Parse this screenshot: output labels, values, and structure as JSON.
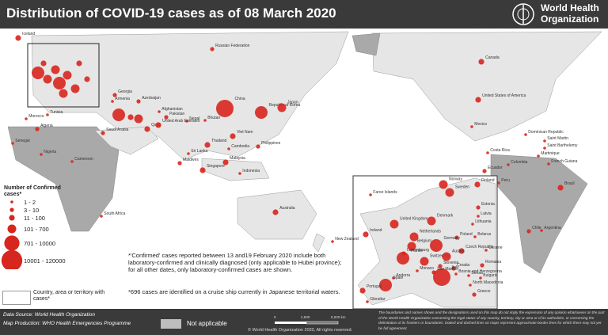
{
  "header": {
    "title": "Distribution of COVID-19 cases as of 08 March 2020",
    "organization": [
      "World Health",
      "Organization"
    ]
  },
  "legend": {
    "title": "Number of Confirmed cases*",
    "classes": [
      "1 - 2",
      "3 - 10",
      "11 - 100",
      "101 - 700",
      "701 - 10000",
      "10001 - 120000"
    ],
    "territory": "Country, area or territory with cases*",
    "not_applicable": "Not applicable"
  },
  "notes": [
    "*'Confirmed' cases reported between 13 and19 February 2020 include both laboratory-confirmed and clinically diagnosed (only applicable to Hubei province); for all other dates, only laboratory-confirmed cases are shown.",
    "*696 cases are identified on a cruise ship currently in Japanese territorial waters."
  ],
  "footer": {
    "data_source": "Data Source: World Health Organization",
    "map_production": "Map Production: WHO Health Emergencies Programme",
    "scale": [
      "0",
      "2,500",
      "5,000 km"
    ],
    "copyright": "© World Health Organization 2020, All rights reserved.",
    "disclaimer": "The boundaries and names shown and the designations used on this map do not imply the expression of any opinion whatsoever on the part of the World Health Organization concerning the legal status of any country, territory, city or area or of its authorities, or concerning the delimitation of its frontiers or boundaries. Dotted and dashed lines on maps represent approximate border lines for which there may not yet be full agreement."
  },
  "map_labels": [
    "Russian Federation",
    "Canada",
    "United States of America",
    "Mexico",
    "China",
    "Republic of Korea",
    "Japan",
    "Nepal",
    "Bhutan",
    "Thailand",
    "Viet Nam",
    "Cambodia",
    "Philippines",
    "Malaysia",
    "Singapore",
    "Indonesia",
    "Sri Lanka",
    "Maldives",
    "Australia",
    "New Zealand",
    "Afghanistan",
    "Pakistan",
    "Qatar",
    "United Arab Emirates",
    "Saudi Arabia",
    "Morocco",
    "Tunisia",
    "Algeria",
    "Nigeria",
    "Cameroon",
    "Senegal",
    "South Africa",
    "Iceland",
    "Georgia",
    "Armenia",
    "Azerbaijan",
    "Dominican Republic",
    "Saint Martin",
    "Saint Barthelemy",
    "Martinique",
    "Costa Rica",
    "Colombia",
    "Ecuador",
    "French Guiana",
    "Peru",
    "Brazil",
    "Chile",
    "Argentina"
  ],
  "europe_labels": [
    "Faroe Islands",
    "Norway",
    "Sweden",
    "Finland",
    "Estonia",
    "Latvia",
    "Lithuania",
    "Denmark",
    "Belarus",
    "United Kingdom",
    "Ireland",
    "Netherlands",
    "Poland",
    "Belgium",
    "Germany",
    "Czech Republic",
    "Ukraine",
    "France",
    "Switzerland",
    "Austria",
    "Slovenia",
    "Croatia",
    "Romania",
    "Bosnia and Herzegovina",
    "Serbia",
    "Bulgaria",
    "Italy",
    "Andorra",
    "Spain",
    "Portugal",
    "North Macedonia",
    "Greece",
    "Gibraltar",
    "San Marino",
    "Monaco",
    "Luxembourg"
  ]
}
